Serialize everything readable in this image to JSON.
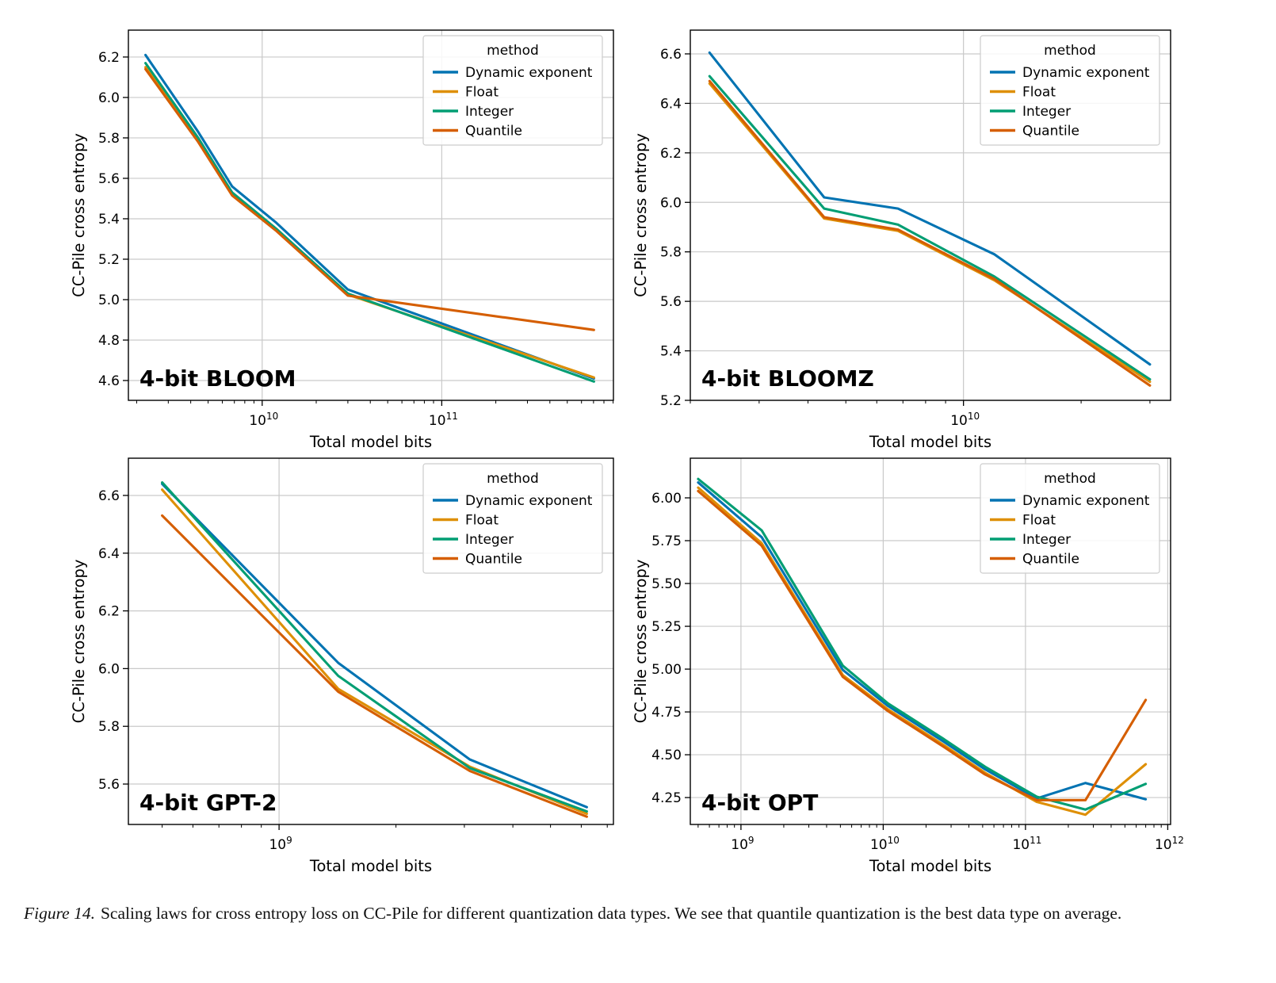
{
  "caption": {
    "label": "Figure 14.",
    "text": "Scaling laws for cross entropy loss on CC-Pile for different quantization data types. We see that quantile quantization is the best data type on average."
  },
  "legend": {
    "title": "method",
    "entries": [
      "Dynamic exponent",
      "Float",
      "Integer",
      "Quantile"
    ]
  },
  "palette": {
    "dynamic_exponent": "#0173b2",
    "float": "#de8f05",
    "integer": "#029e73",
    "quantile": "#d55e00",
    "grid": "#c9c9c9",
    "spine": "#000000",
    "legend_border": "#cccccc"
  },
  "chart_data": [
    {
      "type": "line",
      "title": "4-bit BLOOM",
      "xlabel": "Total model bits",
      "ylabel": "CC-Pile cross entropy",
      "xscale": "log",
      "xlim_log10": [
        9.255,
        11.956
      ],
      "ylim": [
        4.502,
        6.333
      ],
      "xticks_exp": [
        10,
        11
      ],
      "yticks": [
        4.6,
        4.8,
        5.0,
        5.2,
        5.4,
        5.6,
        5.8,
        6.0,
        6.2
      ],
      "ytick_labels": [
        "4.6",
        "4.8",
        "5.0",
        "5.2",
        "5.4",
        "5.6",
        "5.8",
        "6.0",
        "6.2"
      ],
      "legend": true,
      "x": [
        2240000000.0,
        4400000000.0,
        6800000000.0,
        12000000000.0,
        30000000000.0,
        704000000000.0
      ],
      "series": [
        {
          "name": "Dynamic exponent",
          "color": "#0173b2",
          "values": [
            6.21,
            5.83,
            5.56,
            5.38,
            5.05,
            4.61
          ]
        },
        {
          "name": "Float",
          "color": "#de8f05",
          "values": [
            6.15,
            5.79,
            5.52,
            5.345,
            5.025,
            4.615
          ]
        },
        {
          "name": "Integer",
          "color": "#029e73",
          "values": [
            6.17,
            5.8,
            5.53,
            5.35,
            5.03,
            4.595
          ]
        },
        {
          "name": "Quantile",
          "color": "#d55e00",
          "values": [
            6.14,
            5.78,
            5.515,
            5.34,
            5.02,
            4.85
          ]
        }
      ]
    },
    {
      "type": "line",
      "title": "4-bit BLOOMZ",
      "xlabel": "Total model bits",
      "ylabel": "CC-Pile cross entropy",
      "xscale": "log",
      "xlim_log10": [
        9.301,
        10.53
      ],
      "ylim": [
        5.2,
        6.696
      ],
      "xticks_exp": [
        10
      ],
      "yticks": [
        5.2,
        5.4,
        5.6,
        5.8,
        6.0,
        6.2,
        6.4,
        6.6
      ],
      "ytick_labels": [
        "5.2",
        "5.4",
        "5.6",
        "5.8",
        "6.0",
        "6.2",
        "6.4",
        "6.6"
      ],
      "legend": true,
      "x": [
        2240000000.0,
        4400000000.0,
        6800000000.0,
        12000000000.0,
        30000000000.0
      ],
      "series": [
        {
          "name": "Dynamic exponent",
          "color": "#0173b2",
          "values": [
            6.605,
            6.02,
            5.975,
            5.79,
            5.345
          ]
        },
        {
          "name": "Float",
          "color": "#de8f05",
          "values": [
            6.48,
            5.935,
            5.885,
            5.685,
            5.275
          ]
        },
        {
          "name": "Integer",
          "color": "#029e73",
          "values": [
            6.51,
            5.975,
            5.91,
            5.7,
            5.285
          ]
        },
        {
          "name": "Quantile",
          "color": "#d55e00",
          "values": [
            6.49,
            5.94,
            5.89,
            5.69,
            5.26
          ]
        }
      ]
    },
    {
      "type": "line",
      "title": "4-bit GPT-2",
      "xlabel": "Total model bits",
      "ylabel": "CC-Pile cross entropy",
      "xscale": "log",
      "xlim_log10": [
        8.612,
        9.861
      ],
      "ylim": [
        5.46,
        6.729
      ],
      "xticks_exp": [
        9
      ],
      "yticks": [
        5.6,
        5.8,
        6.0,
        6.2,
        6.4,
        6.6
      ],
      "ytick_labels": [
        "5.6",
        "5.8",
        "6.0",
        "6.2",
        "6.4",
        "6.6"
      ],
      "legend": true,
      "x": [
        500000000.0,
        1420000000.0,
        3100000000.0,
        6200000000.0
      ],
      "series": [
        {
          "name": "Dynamic exponent",
          "color": "#0173b2",
          "values": [
            6.64,
            6.02,
            5.685,
            5.52
          ]
        },
        {
          "name": "Float",
          "color": "#de8f05",
          "values": [
            6.62,
            5.93,
            5.66,
            5.497
          ]
        },
        {
          "name": "Integer",
          "color": "#029e73",
          "values": [
            6.645,
            5.975,
            5.655,
            5.505
          ]
        },
        {
          "name": "Quantile",
          "color": "#d55e00",
          "values": [
            6.53,
            5.92,
            5.645,
            5.487
          ]
        }
      ]
    },
    {
      "type": "line",
      "title": "4-bit OPT",
      "xlabel": "Total model bits",
      "ylabel": "CC-Pile cross entropy",
      "xscale": "log",
      "xlim_log10": [
        8.644,
        12.02
      ],
      "ylim": [
        4.093,
        6.2315
      ],
      "xticks_exp": [
        9,
        10,
        11,
        12
      ],
      "yticks": [
        4.25,
        4.5,
        4.75,
        5.0,
        5.25,
        5.5,
        5.75,
        6.0
      ],
      "ytick_labels": [
        "4.25",
        "4.50",
        "4.75",
        "5.00",
        "5.25",
        "5.50",
        "5.75",
        "6.00"
      ],
      "legend": true,
      "x": [
        500000000.0,
        1400000000.0,
        5200000000.0,
        10800000000.0,
        26800000000.0,
        52000000000.0,
        120000000000.0,
        264000000000.0,
        700000000000.0
      ],
      "series": [
        {
          "name": "Dynamic exponent",
          "color": "#0173b2",
          "values": [
            6.09,
            5.77,
            4.995,
            4.785,
            4.575,
            4.415,
            4.245,
            4.335,
            4.24
          ]
        },
        {
          "name": "Float",
          "color": "#de8f05",
          "values": [
            6.06,
            5.735,
            4.965,
            4.765,
            4.555,
            4.395,
            4.225,
            4.15,
            4.445
          ]
        },
        {
          "name": "Integer",
          "color": "#029e73",
          "values": [
            6.11,
            5.81,
            5.02,
            4.8,
            4.59,
            4.43,
            4.255,
            4.18,
            4.33
          ]
        },
        {
          "name": "Quantile",
          "color": "#d55e00",
          "values": [
            6.04,
            5.72,
            4.955,
            4.755,
            4.545,
            4.385,
            4.235,
            4.235,
            4.82
          ]
        }
      ]
    }
  ]
}
